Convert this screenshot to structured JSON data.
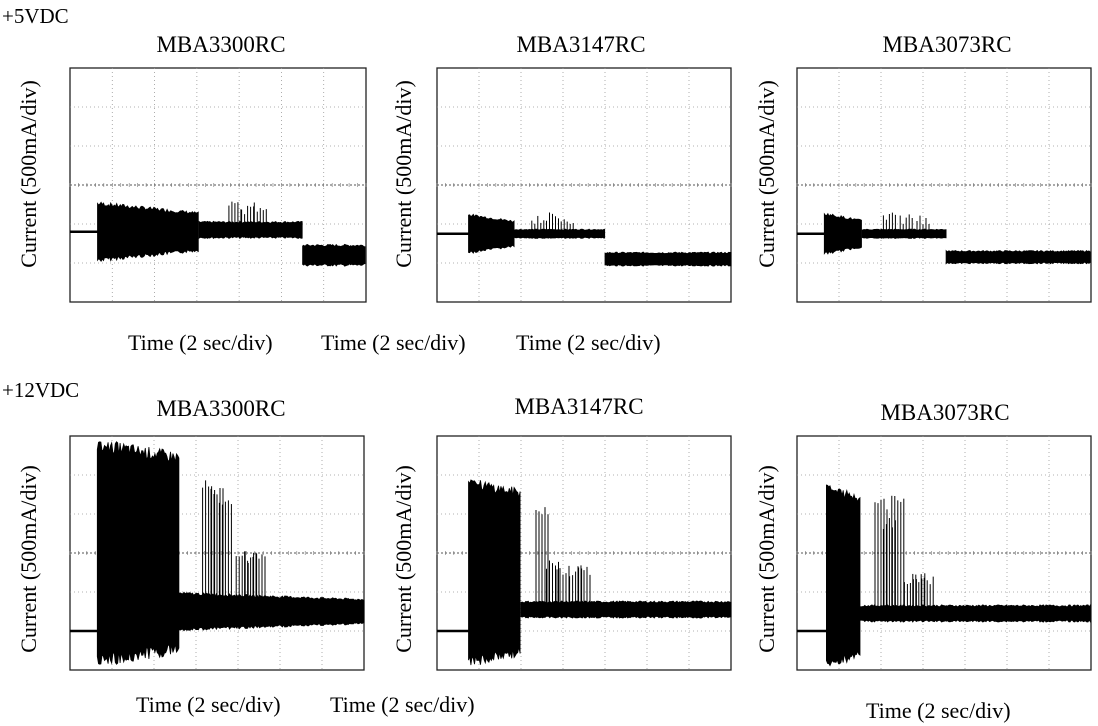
{
  "figure": {
    "rows": [
      {
        "voltage_label": "+5VDC"
      },
      {
        "voltage_label": "+12VDC"
      }
    ],
    "x_labels_top": [
      "Time (2 sec/div)",
      "Time (2 sec/div)",
      "Time (2 sec/div)"
    ],
    "x_labels_bottom": [
      "Time (2 sec/div)",
      "Time (2 sec/div)",
      "Time (2 sec/div)"
    ]
  },
  "chart_data": [
    {
      "type": "line",
      "title": "MBA3300RC",
      "group": "+5VDC",
      "xlabel": "Time (2 sec/div)",
      "ylabel": "Current (500mA/div)",
      "x_divisions": 7,
      "y_divisions": 6,
      "grid": true,
      "color": "#000000",
      "segments": [
        {
          "t_start": 0.0,
          "t_end": 0.65,
          "center_div": 1.8,
          "amplitude_div": 0.0
        },
        {
          "t_start": 0.65,
          "t_end": 3.05,
          "center_div": 1.8,
          "amplitude_div": 0.78
        },
        {
          "t_start": 3.05,
          "t_end": 5.5,
          "center_div": 1.85,
          "amplitude_div": 0.22,
          "bursts": [
            {
              "t": 3.9,
              "peak_div": 2.6
            },
            {
              "t": 4.2,
              "peak_div": 2.55
            },
            {
              "t": 4.5,
              "peak_div": 2.6
            }
          ]
        },
        {
          "t_start": 5.5,
          "t_end": 7.0,
          "center_div": 1.2,
          "amplitude_div": 0.28
        }
      ]
    },
    {
      "type": "line",
      "title": "MBA3147RC",
      "group": "+5VDC",
      "xlabel": "Time (2 sec/div)",
      "ylabel": "Current (500mA/div)",
      "x_divisions": 7,
      "y_divisions": 6,
      "grid": true,
      "color": "#000000",
      "segments": [
        {
          "t_start": 0.0,
          "t_end": 0.75,
          "center_div": 1.75,
          "amplitude_div": 0.0
        },
        {
          "t_start": 0.75,
          "t_end": 1.85,
          "center_div": 1.75,
          "amplitude_div": 0.52
        },
        {
          "t_start": 1.85,
          "t_end": 4.0,
          "center_div": 1.75,
          "amplitude_div": 0.12,
          "bursts": [
            {
              "t": 2.4,
              "peak_div": 2.3
            },
            {
              "t": 2.75,
              "peak_div": 2.3
            },
            {
              "t": 3.1,
              "peak_div": 2.3
            }
          ]
        },
        {
          "t_start": 4.0,
          "t_end": 7.0,
          "center_div": 1.1,
          "amplitude_div": 0.18
        }
      ]
    },
    {
      "type": "line",
      "title": "MBA3073RC",
      "group": "+5VDC",
      "xlabel": "Time (2 sec/div)",
      "ylabel": "Current (500mA/div)",
      "x_divisions": 7,
      "y_divisions": 6,
      "grid": true,
      "color": "#000000",
      "segments": [
        {
          "t_start": 0.0,
          "t_end": 0.65,
          "center_div": 1.75,
          "amplitude_div": 0.0
        },
        {
          "t_start": 0.65,
          "t_end": 1.55,
          "center_div": 1.75,
          "amplitude_div": 0.55
        },
        {
          "t_start": 1.55,
          "t_end": 3.55,
          "center_div": 1.75,
          "amplitude_div": 0.12,
          "bursts": [
            {
              "t": 2.2,
              "peak_div": 2.3
            },
            {
              "t": 2.6,
              "peak_div": 2.3
            },
            {
              "t": 3.0,
              "peak_div": 2.3
            }
          ]
        },
        {
          "t_start": 3.55,
          "t_end": 7.0,
          "center_div": 1.15,
          "amplitude_div": 0.17
        }
      ]
    },
    {
      "type": "line",
      "title": "MBA3300RC",
      "group": "+12VDC",
      "xlabel": "Time (2 sec/div)",
      "ylabel": "Current (500mA/div)",
      "x_divisions": 7,
      "y_divisions": 6,
      "grid": true,
      "color": "#000000",
      "segments": [
        {
          "t_start": 0.0,
          "t_end": 0.65,
          "center_div": 1.0,
          "amplitude_div": 0.0
        },
        {
          "t_start": 0.65,
          "t_end": 2.6,
          "center_div": 3.0,
          "amplitude_div": 2.95,
          "peak_div": 5.6
        },
        {
          "t_start": 2.6,
          "t_end": 7.0,
          "center_div": 1.5,
          "amplitude_div": 0.5,
          "bursts": [
            {
              "t": 3.3,
              "peak_div": 4.9
            },
            {
              "t": 3.5,
              "peak_div": 4.7
            },
            {
              "t": 3.7,
              "peak_div": 4.5
            },
            {
              "t": 4.1,
              "peak_div": 3.05
            },
            {
              "t": 4.3,
              "peak_div": 3.05
            },
            {
              "t": 4.5,
              "peak_div": 3.05
            }
          ]
        }
      ]
    },
    {
      "type": "line",
      "title": "MBA3147RC",
      "group": "+12VDC",
      "xlabel": "Time (2 sec/div)",
      "ylabel": "Current (500mA/div)",
      "x_divisions": 7,
      "y_divisions": 6,
      "grid": true,
      "color": "#000000",
      "segments": [
        {
          "t_start": 0.0,
          "t_end": 0.75,
          "center_div": 1.0,
          "amplitude_div": 0.0
        },
        {
          "t_start": 0.75,
          "t_end": 2.0,
          "center_div": 2.5,
          "amplitude_div": 2.45,
          "peak_div": 4.9
        },
        {
          "t_start": 2.0,
          "t_end": 7.0,
          "center_div": 1.55,
          "amplitude_div": 0.22,
          "bursts": [
            {
              "t": 2.5,
              "peak_div": 4.2
            },
            {
              "t": 2.75,
              "peak_div": 2.9
            },
            {
              "t": 3.0,
              "peak_div": 2.7
            },
            {
              "t": 3.3,
              "peak_div": 2.7
            },
            {
              "t": 3.5,
              "peak_div": 2.7
            }
          ]
        }
      ]
    },
    {
      "type": "line",
      "title": "MBA3073RC",
      "group": "+12VDC",
      "xlabel": "Time (2 sec/div)",
      "ylabel": "Current (500mA/div)",
      "x_divisions": 7,
      "y_divisions": 6,
      "grid": true,
      "color": "#000000",
      "segments": [
        {
          "t_start": 0.0,
          "t_end": 0.7,
          "center_div": 1.0,
          "amplitude_div": 0.0
        },
        {
          "t_start": 0.7,
          "t_end": 1.5,
          "center_div": 2.4,
          "amplitude_div": 2.4,
          "peak_div": 4.75
        },
        {
          "t_start": 1.5,
          "t_end": 7.0,
          "center_div": 1.45,
          "amplitude_div": 0.22,
          "bursts": [
            {
              "t": 2.0,
              "peak_div": 4.4
            },
            {
              "t": 2.2,
              "peak_div": 3.9
            },
            {
              "t": 2.4,
              "peak_div": 4.5
            },
            {
              "t": 2.7,
              "peak_div": 2.5
            },
            {
              "t": 2.9,
              "peak_div": 2.5
            },
            {
              "t": 3.1,
              "peak_div": 2.5
            }
          ]
        }
      ]
    }
  ]
}
